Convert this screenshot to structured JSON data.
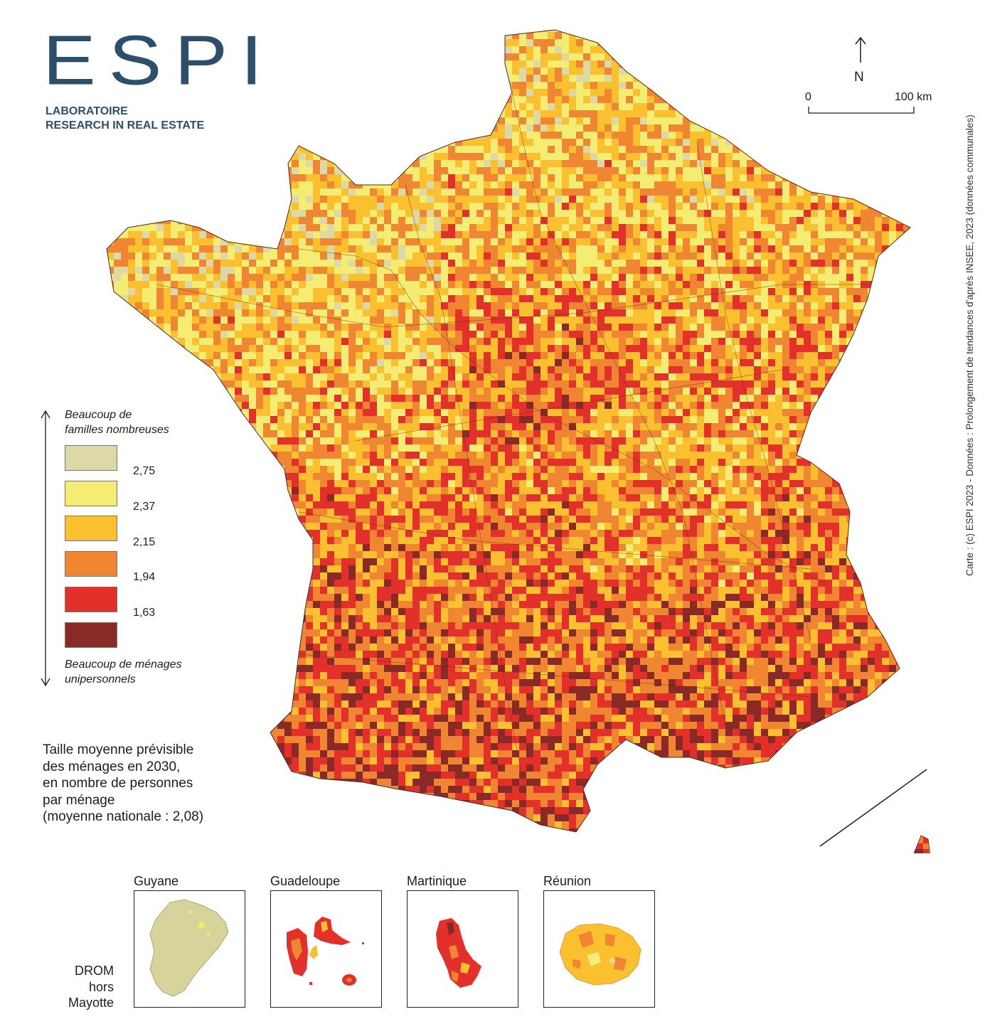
{
  "logo": {
    "wordmark": "ESPI",
    "subtitle_lines": [
      "LABORATOIRE",
      "RESEARCH IN REAL ESTATE"
    ]
  },
  "compass": {
    "label": "N"
  },
  "scale": {
    "start": "0",
    "end": "100 km"
  },
  "credit": "Carte : (c) ESPI 2023 - Données : Prolongement de tendances d'après INSEE, 2023 (données communales)",
  "legend": {
    "top_caption_lines": [
      "Beaucoup de",
      "familles nombreuses"
    ],
    "bottom_caption_lines": [
      "Beaucoup de ménages",
      "unipersonnels"
    ],
    "classes": [
      {
        "color": "#ddd9a6"
      },
      {
        "color": "#f5ec73"
      },
      {
        "color": "#fbc02f"
      },
      {
        "color": "#f08532"
      },
      {
        "color": "#e3302a"
      },
      {
        "color": "#8a2a27"
      }
    ],
    "breaks": [
      "2,75",
      "2,37",
      "2,15",
      "1,94",
      "1,63"
    ]
  },
  "description_lines": [
    "Taille moyenne prévisible",
    "des ménages en 2030,",
    "en nombre de personnes",
    "par ménage",
    "(moyenne nationale : 2,08)"
  ],
  "insets": {
    "drom_lines": [
      "DROM",
      "hors",
      "Mayotte"
    ],
    "titles": [
      "Guyane",
      "Guadeloupe",
      "Martinique",
      "Réunion"
    ]
  }
}
